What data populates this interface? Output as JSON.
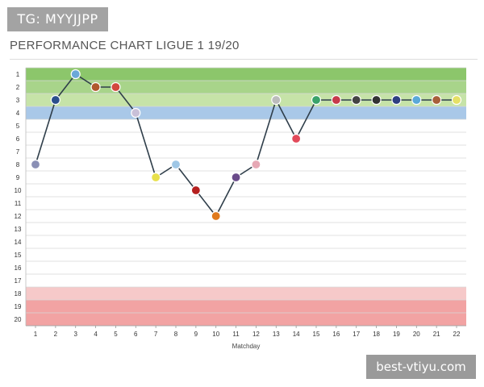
{
  "badge_text": "TG: MYYJJPP",
  "watermark_text": "best-vtiyu.com",
  "colors": {
    "band_top": "#8cc66b",
    "band_2": "#a8d48a",
    "band_3": "#c6e3a8",
    "band_4": "#a9c8e8",
    "band_18": "#f6c9c9",
    "band_19_20": "#f2a3a3",
    "line": "#2f3e4a",
    "grid": "#d8d8d8"
  },
  "chart_data": {
    "type": "line",
    "title": "PERFORMANCE CHART LIGUE 1 19/20",
    "xlabel": "Matchday",
    "ylabel": "",
    "x": [
      1,
      2,
      3,
      4,
      5,
      6,
      7,
      8,
      9,
      10,
      11,
      12,
      13,
      14,
      15,
      16,
      17,
      18,
      19,
      20,
      21,
      22
    ],
    "positions": [
      8,
      3,
      1,
      2,
      2,
      4,
      9,
      8,
      10,
      12,
      9,
      8,
      3,
      6,
      3,
      3,
      3,
      3,
      3,
      3,
      3,
      3
    ],
    "xlim": [
      1,
      22
    ],
    "ylim": [
      1,
      20
    ],
    "y_inverted": true,
    "y_ticks": [
      1,
      2,
      3,
      4,
      5,
      6,
      7,
      8,
      9,
      10,
      11,
      12,
      13,
      14,
      15,
      16,
      17,
      18,
      19,
      20
    ],
    "zones": [
      {
        "from": 1,
        "to": 1,
        "color": "band_top"
      },
      {
        "from": 2,
        "to": 2,
        "color": "band_2"
      },
      {
        "from": 3,
        "to": 3,
        "color": "band_3"
      },
      {
        "from": 4,
        "to": 4,
        "color": "band_4"
      },
      {
        "from": 18,
        "to": 18,
        "color": "band_18"
      },
      {
        "from": 19,
        "to": 20,
        "color": "band_19_20"
      }
    ],
    "grid": true,
    "markers": [
      "badge-icon"
    ]
  }
}
